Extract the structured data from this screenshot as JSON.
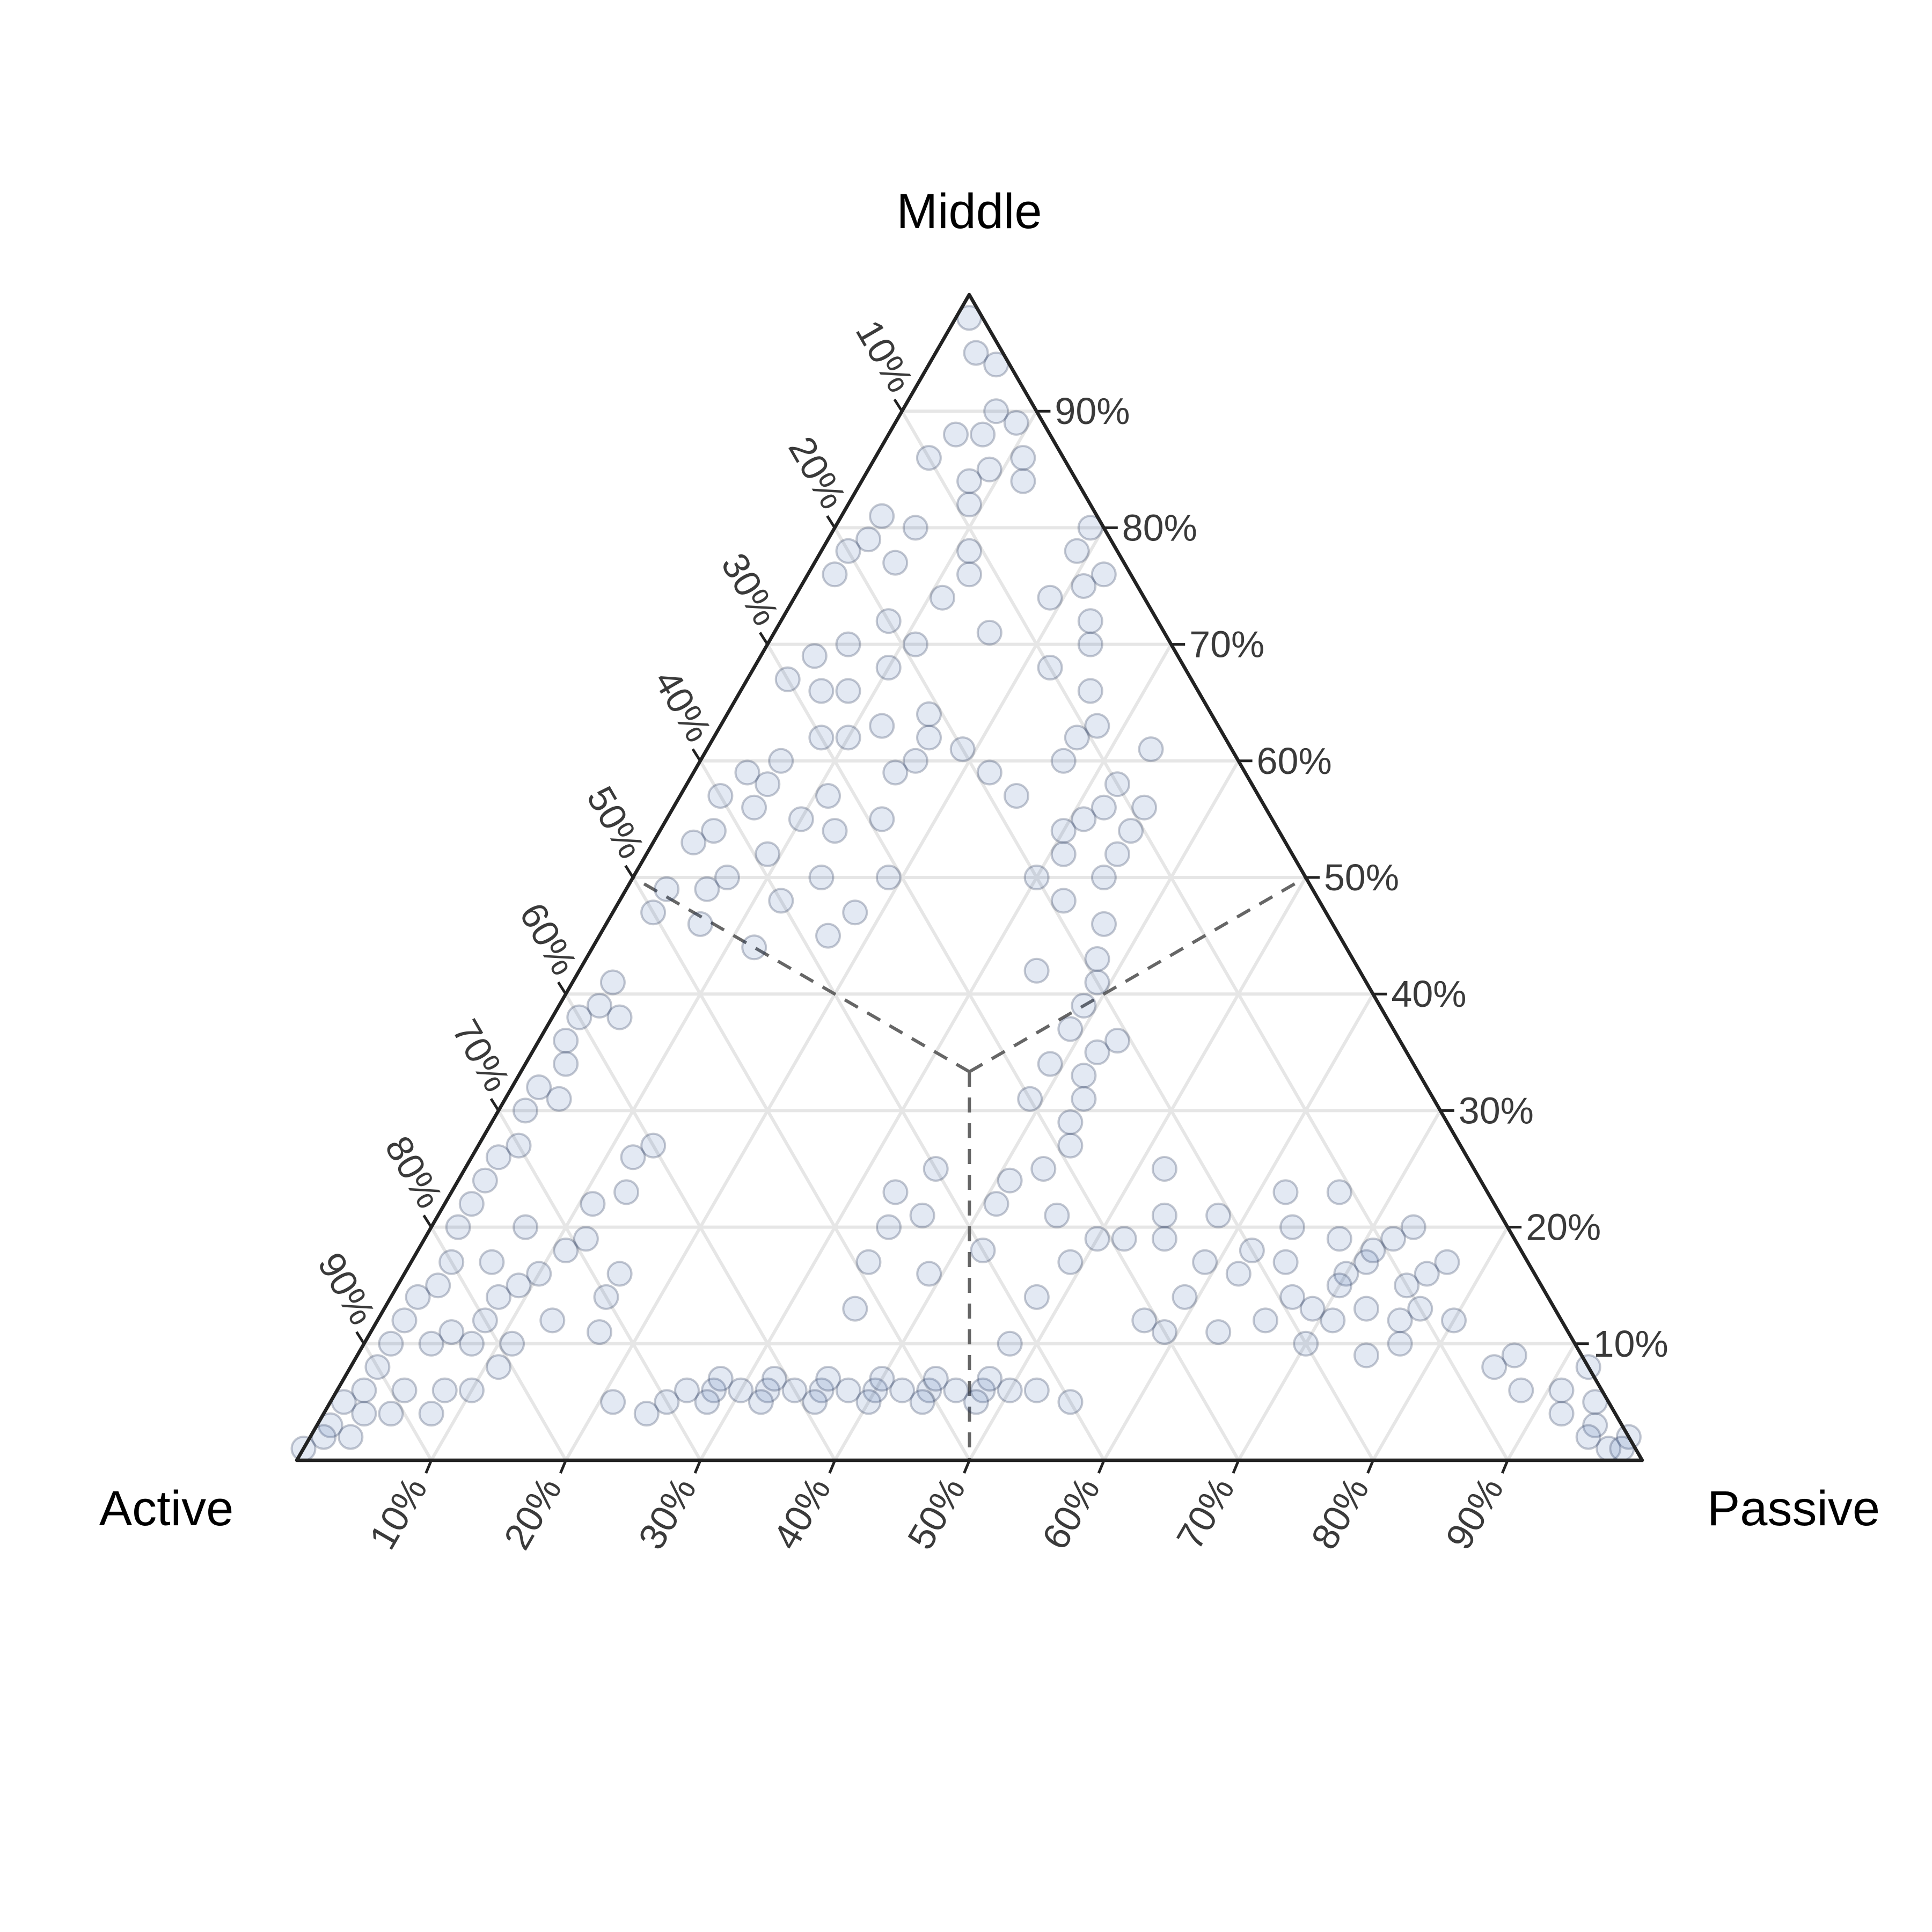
{
  "chart_data": {
    "type": "scatter",
    "subtype": "ternary",
    "axes": {
      "left_vertex": "Active",
      "top_vertex": "Middle",
      "right_vertex": "Passive"
    },
    "ticks": [
      10,
      20,
      30,
      40,
      50,
      60,
      70,
      80,
      90
    ],
    "tick_suffix": "%",
    "grid": true,
    "boundary_lines": "dashed, from centroid (33.3/33.3/33.3) to edge midpoints",
    "marker": {
      "fill": "#3a63ad",
      "stroke": "#1a2b4c",
      "point_alpha": 0.14
    },
    "points_order": "active, middle, passive (percent)",
    "points": [
      [
        1,
        98,
        1
      ],
      [
        2,
        95,
        3
      ],
      [
        1,
        94,
        5
      ],
      [
        3,
        90,
        7
      ],
      [
        5,
        88,
        7
      ],
      [
        2,
        89,
        9
      ],
      [
        7,
        88,
        5
      ],
      [
        6,
        85,
        9
      ],
      [
        4,
        84,
        12
      ],
      [
        8,
        84,
        8
      ],
      [
        10,
        86,
        4
      ],
      [
        3,
        86,
        11
      ],
      [
        9,
        82,
        9
      ],
      [
        1,
        80,
        19
      ],
      [
        3,
        78,
        19
      ],
      [
        2,
        76,
        22
      ],
      [
        4,
        75,
        21
      ],
      [
        14,
        80,
        6
      ],
      [
        18,
        79,
        3
      ],
      [
        16,
        81,
        3
      ],
      [
        20,
        78,
        2
      ],
      [
        22,
        76,
        2
      ],
      [
        17,
        77,
        6
      ],
      [
        15,
        74,
        11
      ],
      [
        20,
        72,
        8
      ],
      [
        24,
        70,
        6
      ],
      [
        19,
        70,
        11
      ],
      [
        22,
        68,
        10
      ],
      [
        26,
        66,
        8
      ],
      [
        28,
        66,
        6
      ],
      [
        13,
        71,
        16
      ],
      [
        12,
        76,
        12
      ],
      [
        11,
        78,
        11
      ],
      [
        27,
        69,
        4
      ],
      [
        30,
        67,
        3
      ],
      [
        30,
        62,
        8
      ],
      [
        34,
        60,
        6
      ],
      [
        36,
        58,
        6
      ],
      [
        32,
        57,
        11
      ],
      [
        38,
        56,
        6
      ],
      [
        42,
        54,
        4
      ],
      [
        44,
        53,
        3
      ],
      [
        37,
        59,
        4
      ],
      [
        40,
        57,
        3
      ],
      [
        35,
        55,
        10
      ],
      [
        39,
        52,
        9
      ],
      [
        45,
        49,
        6
      ],
      [
        48,
        49,
        3
      ],
      [
        50,
        47,
        3
      ],
      [
        43,
        50,
        7
      ],
      [
        47,
        46,
        7
      ],
      [
        28,
        62,
        10
      ],
      [
        25,
        63,
        12
      ],
      [
        22,
        62,
        16
      ],
      [
        20,
        61,
        19
      ],
      [
        24,
        60,
        16
      ],
      [
        21,
        64,
        15
      ],
      [
        26,
        59,
        15
      ],
      [
        19,
        59,
        22
      ],
      [
        29,
        55,
        16
      ],
      [
        33,
        54,
        13
      ],
      [
        31,
        50,
        19
      ],
      [
        36,
        50,
        14
      ],
      [
        40,
        48,
        12
      ],
      [
        44,
        44,
        12
      ],
      [
        38,
        45,
        17
      ],
      [
        35,
        47,
        18
      ],
      [
        56,
        41,
        3
      ],
      [
        58,
        39,
        3
      ],
      [
        60,
        38,
        2
      ],
      [
        62,
        36,
        2
      ],
      [
        57,
        38,
        5
      ],
      [
        63,
        34,
        3
      ],
      [
        66,
        32,
        2
      ],
      [
        68,
        30,
        2
      ],
      [
        65,
        31,
        4
      ],
      [
        70,
        27,
        3
      ],
      [
        72,
        26,
        2
      ],
      [
        74,
        24,
        2
      ],
      [
        76,
        22,
        2
      ],
      [
        78,
        20,
        2
      ],
      [
        80,
        17,
        3
      ],
      [
        82,
        15,
        3
      ],
      [
        84,
        14,
        2
      ],
      [
        86,
        12,
        2
      ],
      [
        88,
        10,
        2
      ],
      [
        90,
        8,
        2
      ],
      [
        92,
        6,
        2
      ],
      [
        94,
        5,
        1
      ],
      [
        96,
        3,
        1
      ],
      [
        97,
        2,
        1
      ],
      [
        99,
        1,
        0
      ],
      [
        93,
        4,
        3
      ],
      [
        95,
        2,
        3
      ],
      [
        91,
        4,
        5
      ],
      [
        89,
        6,
        5
      ],
      [
        85,
        10,
        5
      ],
      [
        83,
        11,
        6
      ],
      [
        80,
        12,
        8
      ],
      [
        78,
        14,
        8
      ],
      [
        76,
        15,
        9
      ],
      [
        74,
        16,
        10
      ],
      [
        71,
        18,
        11
      ],
      [
        69,
        19,
        12
      ],
      [
        67,
        22,
        11
      ],
      [
        64,
        23,
        13
      ],
      [
        62,
        26,
        12
      ],
      [
        60,
        27,
        13
      ],
      [
        73,
        20,
        7
      ],
      [
        77,
        17,
        6
      ],
      [
        82,
        10,
        8
      ],
      [
        79,
        10,
        11
      ],
      [
        75,
        12,
        13
      ],
      [
        72,
        11,
        17
      ],
      [
        70,
        14,
        16
      ],
      [
        68,
        16,
        16
      ],
      [
        84,
        6,
        10
      ],
      [
        81,
        8,
        11
      ],
      [
        86,
        6,
        8
      ],
      [
        88,
        4,
        8
      ],
      [
        68,
        6,
        26
      ],
      [
        66,
        6,
        28
      ],
      [
        64,
        6,
        30
      ],
      [
        62,
        6,
        32
      ],
      [
        60,
        6,
        34
      ],
      [
        58,
        6,
        36
      ],
      [
        56,
        6,
        38
      ],
      [
        54,
        6,
        40
      ],
      [
        52,
        6,
        42
      ],
      [
        50,
        6,
        44
      ],
      [
        48,
        6,
        46
      ],
      [
        46,
        6,
        48
      ],
      [
        44,
        6,
        50
      ],
      [
        42,
        6,
        52
      ],
      [
        65,
        7,
        28
      ],
      [
        61,
        7,
        32
      ],
      [
        57,
        7,
        36
      ],
      [
        53,
        7,
        40
      ],
      [
        49,
        7,
        44
      ],
      [
        45,
        7,
        48
      ],
      [
        63,
        5,
        32
      ],
      [
        59,
        5,
        36
      ],
      [
        55,
        5,
        40
      ],
      [
        51,
        5,
        44
      ],
      [
        47,
        5,
        48
      ],
      [
        67,
        5,
        28
      ],
      [
        70,
        5,
        25
      ],
      [
        72,
        4,
        24
      ],
      [
        74,
        5,
        21
      ],
      [
        40,
        5,
        55
      ],
      [
        52,
        13,
        35
      ],
      [
        46,
        20,
        34
      ],
      [
        44,
        23,
        33
      ],
      [
        43,
        21,
        36
      ],
      [
        40,
        18,
        42
      ],
      [
        40,
        25,
        35
      ],
      [
        35,
        24,
        41
      ],
      [
        37,
        22,
        41
      ],
      [
        33,
        21,
        46
      ],
      [
        31,
        19,
        50
      ],
      [
        34,
        17,
        49
      ],
      [
        45,
        16,
        39
      ],
      [
        49,
        17,
        34
      ],
      [
        38,
        14,
        48
      ],
      [
        30,
        11,
        59
      ],
      [
        26,
        11,
        63
      ],
      [
        42,
        10,
        48
      ],
      [
        5,
        72,
        23
      ],
      [
        7,
        74,
        19
      ],
      [
        6,
        70,
        24
      ],
      [
        10,
        68,
        22
      ],
      [
        8,
        66,
        26
      ],
      [
        9,
        63,
        28
      ],
      [
        11,
        62,
        27
      ],
      [
        13,
        60,
        27
      ],
      [
        6,
        61,
        33
      ],
      [
        10,
        58,
        32
      ],
      [
        12,
        56,
        32
      ],
      [
        14,
        55,
        31
      ],
      [
        9,
        56,
        35
      ],
      [
        16,
        54,
        30
      ],
      [
        13,
        52,
        35
      ],
      [
        18,
        57,
        25
      ],
      [
        15,
        50,
        35
      ],
      [
        17,
        52,
        31
      ],
      [
        11,
        54,
        35
      ],
      [
        19,
        48,
        33
      ],
      [
        20,
        50,
        30
      ],
      [
        17,
        46,
        37
      ],
      [
        19,
        43,
        38
      ],
      [
        20,
        41,
        39
      ],
      [
        22,
        39,
        39
      ],
      [
        24,
        37,
        39
      ],
      [
        23,
        35,
        42
      ],
      [
        25,
        33,
        42
      ],
      [
        26,
        31,
        43
      ],
      [
        28,
        29,
        43
      ],
      [
        29,
        27,
        44
      ],
      [
        27,
        34,
        39
      ],
      [
        30,
        31,
        39
      ],
      [
        32,
        25,
        43
      ],
      [
        21,
        36,
        43
      ],
      [
        24,
        42,
        34
      ],
      [
        20,
        18,
        62
      ],
      [
        18,
        17,
        65
      ],
      [
        16,
        20,
        64
      ],
      [
        22,
        16,
        62
      ],
      [
        19,
        14,
        67
      ],
      [
        17,
        12,
        71
      ],
      [
        14,
        16,
        70
      ],
      [
        12,
        17,
        71
      ],
      [
        15,
        15,
        70
      ],
      [
        13,
        19,
        68
      ],
      [
        11,
        18,
        71
      ],
      [
        10,
        15,
        75
      ],
      [
        9,
        19,
        72
      ],
      [
        8,
        16,
        76
      ],
      [
        14,
        13,
        73
      ],
      [
        12,
        12,
        76
      ],
      [
        10,
        13,
        77
      ],
      [
        18,
        13,
        69
      ],
      [
        21,
        21,
        58
      ],
      [
        24,
        17,
        59
      ],
      [
        25,
        21,
        54
      ],
      [
        23,
        25,
        52
      ],
      [
        26,
        19,
        55
      ],
      [
        15,
        23,
        62
      ],
      [
        11,
        23,
        66
      ],
      [
        7,
        20,
        73
      ],
      [
        6,
        17,
        77
      ],
      [
        20,
        10,
        70
      ],
      [
        16,
        9,
        75
      ],
      [
        22,
        12,
        66
      ],
      [
        13,
        10,
        77
      ],
      [
        8,
        12,
        80
      ],
      [
        27,
        14,
        59
      ],
      [
        29,
        19,
        52
      ],
      [
        31,
        12,
        57
      ],
      [
        1,
        5,
        94
      ],
      [
        2,
        3,
        95
      ],
      [
        0,
        2,
        98
      ],
      [
        2,
        1,
        97
      ],
      [
        1,
        1,
        98
      ],
      [
        3,
        2,
        95
      ],
      [
        4,
        4,
        92
      ],
      [
        3,
        6,
        91
      ],
      [
        0,
        8,
        92
      ],
      [
        5,
        9,
        86
      ],
      [
        7,
        8,
        85
      ],
      [
        6,
        6,
        88
      ]
    ]
  }
}
